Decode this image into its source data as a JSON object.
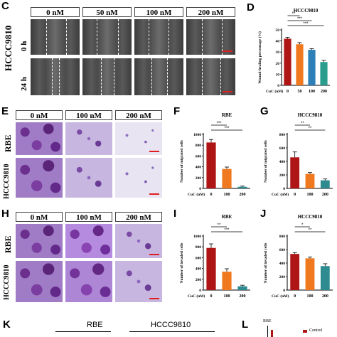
{
  "panels": {
    "C": "C",
    "D": "D",
    "E": "E",
    "F": "F",
    "G": "G",
    "H": "H",
    "I": "I",
    "J": "J",
    "K": "K",
    "L": "L"
  },
  "wound": {
    "cell_line": "HCCC9810",
    "columns": [
      "0 nM",
      "50 nM",
      "100 nM",
      "200 nM"
    ],
    "rows": [
      "0 h",
      "24 h"
    ]
  },
  "migration": {
    "columns": [
      "0 nM",
      "100 nM",
      "200 nM"
    ],
    "rows": [
      "RBE",
      "HCCC9810"
    ]
  },
  "invasion": {
    "columns": [
      "0 nM",
      "100 nM",
      "200 nM"
    ],
    "rows": [
      "RBE",
      "HCCC9810"
    ]
  },
  "panelK": {
    "labels": [
      "RBE",
      "HCCC9810"
    ]
  },
  "panelL": {
    "title": "RBE",
    "legend": "Control"
  },
  "colors": {
    "c0": "#b01515",
    "c1": "#f0781e",
    "c2": "#2d7fb8",
    "c3": "#2a9d8f",
    "c3b": "#2e8b90"
  },
  "chart_data": [
    {
      "id": "D",
      "type": "bar",
      "title": "HCCC9810",
      "ylabel": "Wound-healing percentage (%)",
      "xlabel": "CuC (nM)",
      "categories": [
        "0",
        "50",
        "100",
        "200"
      ],
      "values": [
        42,
        37,
        32,
        21
      ],
      "errors": [
        1.2,
        1.5,
        1.0,
        1.5
      ],
      "ylim": [
        0,
        50
      ],
      "yticks": [
        0,
        10,
        20,
        30,
        40,
        50
      ],
      "colors": [
        "#b01515",
        "#f0781e",
        "#2d7fb8",
        "#2a9d8f"
      ],
      "sig": [
        {
          "from": 0,
          "to": 1,
          "label": "**"
        },
        {
          "from": 0,
          "to": 2,
          "label": "***"
        },
        {
          "from": 0,
          "to": 3,
          "label": "***"
        }
      ]
    },
    {
      "id": "F",
      "type": "bar",
      "title": "RBE",
      "ylabel": "Number of migrated cells",
      "xlabel": "CuC (nM)",
      "categories": [
        "0",
        "100",
        "200"
      ],
      "values": [
        850,
        360,
        30
      ],
      "errors": [
        55,
        35,
        12
      ],
      "ylim": [
        0,
        1000
      ],
      "yticks": [
        0,
        200,
        400,
        600,
        800,
        1000
      ],
      "colors": [
        "#b01515",
        "#f0781e",
        "#2e8b90"
      ],
      "sig": [
        {
          "from": 0,
          "to": 1,
          "label": "***"
        },
        {
          "from": 0,
          "to": 2,
          "label": "***"
        }
      ]
    },
    {
      "id": "G",
      "type": "bar",
      "title": "HCCC9810",
      "ylabel": "Number of migrated cells",
      "xlabel": "CuC (nM)",
      "categories": [
        "0",
        "100",
        "200"
      ],
      "values": [
        460,
        215,
        120
      ],
      "errors": [
        80,
        20,
        20
      ],
      "ylim": [
        0,
        800
      ],
      "yticks": [
        0,
        200,
        400,
        600,
        800
      ],
      "colors": [
        "#b01515",
        "#f0781e",
        "#2e8b90"
      ],
      "sig": [
        {
          "from": 0,
          "to": 1,
          "label": "**"
        },
        {
          "from": 0,
          "to": 2,
          "label": "**"
        }
      ]
    },
    {
      "id": "I",
      "type": "bar",
      "title": "RBE",
      "ylabel": "Number of invaded cells",
      "xlabel": "CuC (nM)",
      "categories": [
        "0",
        "100",
        "200"
      ],
      "values": [
        780,
        340,
        70
      ],
      "errors": [
        75,
        55,
        20
      ],
      "ylim": [
        0,
        1000
      ],
      "yticks": [
        0,
        200,
        400,
        600,
        800,
        1000
      ],
      "colors": [
        "#b01515",
        "#f0781e",
        "#2e8b90"
      ],
      "sig": [
        {
          "from": 0,
          "to": 1,
          "label": "**"
        },
        {
          "from": 0,
          "to": 2,
          "label": "***"
        }
      ]
    },
    {
      "id": "J",
      "type": "bar",
      "title": "HCCC9810",
      "ylabel": "Number of invaded cells",
      "xlabel": "CuC (nM)",
      "categories": [
        "0",
        "100",
        "200"
      ],
      "values": [
        535,
        470,
        355
      ],
      "errors": [
        20,
        20,
        35
      ],
      "ylim": [
        0,
        800
      ],
      "yticks": [
        0,
        200,
        400,
        600,
        800
      ],
      "colors": [
        "#b01515",
        "#f0781e",
        "#2e8b90"
      ],
      "sig": [
        {
          "from": 0,
          "to": 1,
          "label": "*"
        },
        {
          "from": 0,
          "to": 2,
          "label": "**"
        }
      ]
    }
  ]
}
